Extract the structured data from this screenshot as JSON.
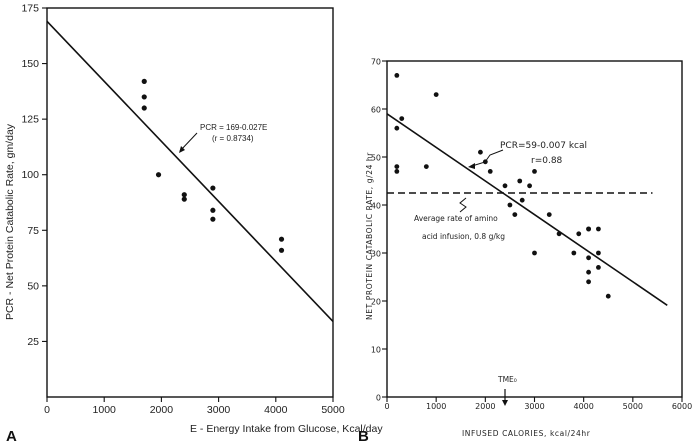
{
  "chart_data": [
    {
      "panel": "A",
      "type": "scatter",
      "xlabel": "E - Energy Intake from Glucose, Kcal/day",
      "ylabel": "PCR - Net Protein Catabolic Rate, gm/day",
      "xlim": [
        0,
        5000
      ],
      "ylim": [
        0,
        175
      ],
      "xticks": [
        0,
        1000,
        2000,
        3000,
        4000,
        5000
      ],
      "yticks": [
        25,
        50,
        75,
        100,
        125,
        150,
        175
      ],
      "points": [
        [
          1700,
          142
        ],
        [
          1700,
          135
        ],
        [
          1700,
          130
        ],
        [
          1950,
          100
        ],
        [
          2400,
          91
        ],
        [
          2400,
          89
        ],
        [
          2900,
          94
        ],
        [
          2900,
          84
        ],
        [
          2900,
          80
        ],
        [
          4100,
          71
        ],
        [
          4100,
          66
        ]
      ],
      "fit_line": {
        "intercept": 169,
        "slope": -0.027,
        "x_range": [
          0,
          5000
        ]
      },
      "annotation": {
        "line1": "PCR = 169-0.027E",
        "line2": "(r = 0.8734)"
      },
      "grid": false
    },
    {
      "panel": "B",
      "type": "scatter",
      "xlabel": "INFUSED CALORIES, kcal/24hr",
      "ylabel": "NET PROTEIN CATABOLIC RATE, g/24 hr",
      "xlim": [
        0,
        6000
      ],
      "ylim": [
        0,
        70
      ],
      "xticks": [
        0,
        1000,
        2000,
        3000,
        4000,
        5000,
        6000
      ],
      "yticks": [
        0,
        10,
        20,
        30,
        40,
        50,
        60,
        70
      ],
      "points": [
        [
          200,
          67
        ],
        [
          200,
          56
        ],
        [
          200,
          48
        ],
        [
          200,
          47
        ],
        [
          300,
          58
        ],
        [
          1000,
          63
        ],
        [
          800,
          48
        ],
        [
          1900,
          51
        ],
        [
          2000,
          49
        ],
        [
          2100,
          47
        ],
        [
          2400,
          44
        ],
        [
          2500,
          40
        ],
        [
          2600,
          38
        ],
        [
          2700,
          45
        ],
        [
          2750,
          41
        ],
        [
          2900,
          44
        ],
        [
          3000,
          47
        ],
        [
          3000,
          30
        ],
        [
          3300,
          38
        ],
        [
          3500,
          34
        ],
        [
          3800,
          30
        ],
        [
          3900,
          34
        ],
        [
          4100,
          35
        ],
        [
          4100,
          35
        ],
        [
          4100,
          29
        ],
        [
          4100,
          26
        ],
        [
          4100,
          24
        ],
        [
          4300,
          35
        ],
        [
          4300,
          27
        ],
        [
          4300,
          30
        ],
        [
          4500,
          21
        ]
      ],
      "fit_line": {
        "intercept": 59,
        "slope": -0.007,
        "x_range": [
          0,
          5700
        ]
      },
      "reference_line": {
        "y": 42.5,
        "x_range": [
          0,
          5400
        ]
      },
      "annotation": {
        "line1": "PCR=59-0.007 kcal",
        "line2": "r=0.88"
      },
      "reference_label": {
        "line1": "Average rate of amino",
        "line2": "acid infusion, 0.8 g/kg"
      },
      "marker_label": "TME₀",
      "marker_x": 2400,
      "grid": false
    }
  ],
  "panel_labels": {
    "a": "A",
    "b": "B"
  }
}
